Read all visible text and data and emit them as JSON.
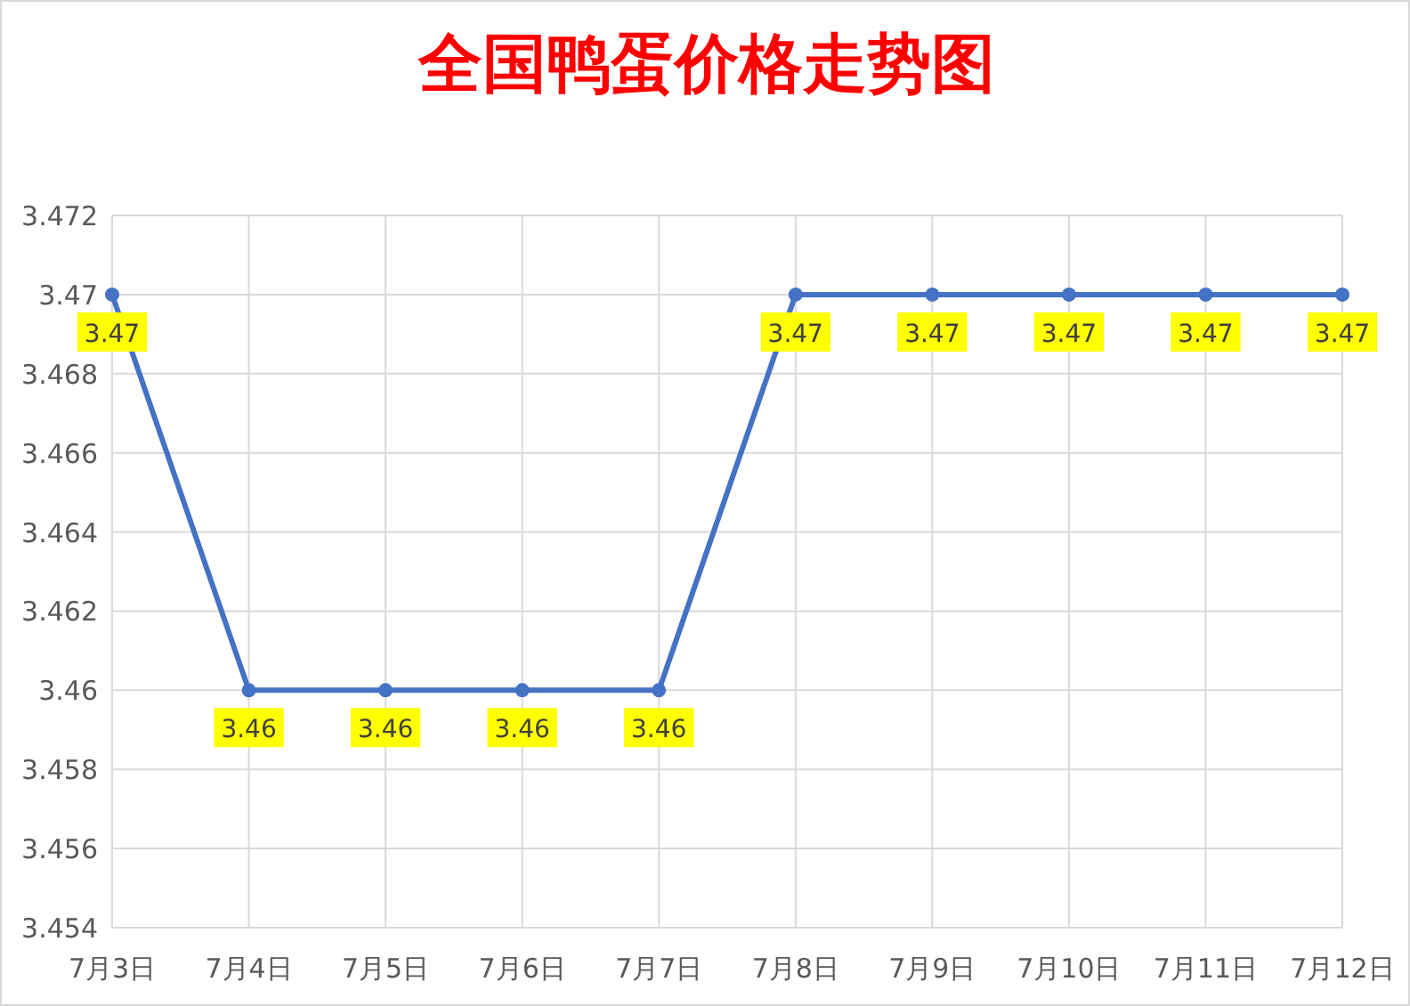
{
  "chart_data": {
    "type": "line",
    "title": "全国鸭蛋价格走势图",
    "categories": [
      "7月3日",
      "7月4日",
      "7月5日",
      "7月6日",
      "7月7日",
      "7月8日",
      "7月9日",
      "7月10日",
      "7月11日",
      "7月12日"
    ],
    "values": [
      3.47,
      3.46,
      3.46,
      3.46,
      3.46,
      3.47,
      3.47,
      3.47,
      3.47,
      3.47
    ],
    "color": "#4472c4",
    "ylim": [
      3.454,
      3.472
    ],
    "yticks": [
      3.454,
      3.456,
      3.458,
      3.46,
      3.462,
      3.464,
      3.466,
      3.468,
      3.47,
      3.472
    ],
    "grid": true,
    "marker": "circle",
    "line_style": "solid",
    "data_labels": true
  }
}
